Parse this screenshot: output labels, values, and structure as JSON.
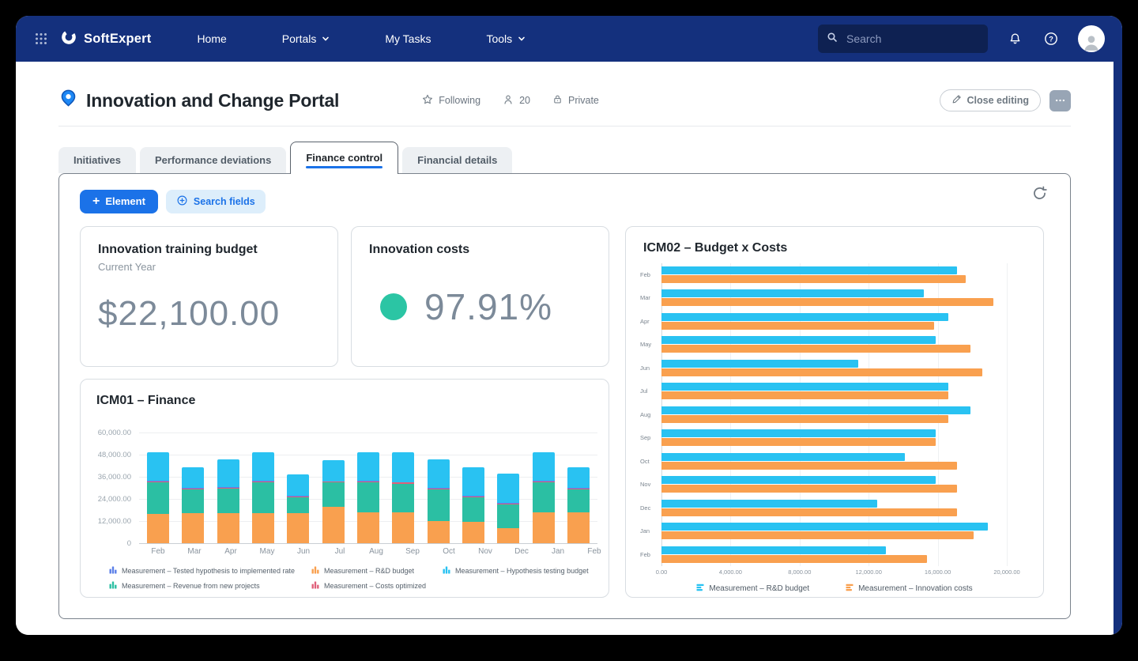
{
  "navbar": {
    "brand": "SoftExpert",
    "items": [
      {
        "label": "Home",
        "has_caret": false
      },
      {
        "label": "Portals",
        "has_caret": true
      },
      {
        "label": "My Tasks",
        "has_caret": false
      },
      {
        "label": "Tools",
        "has_caret": true
      }
    ],
    "search_placeholder": "Search"
  },
  "header": {
    "title": "Innovation and Change Portal",
    "meta": [
      {
        "icon": "star-icon",
        "label": "Following"
      },
      {
        "icon": "person-icon",
        "label": "20"
      },
      {
        "icon": "lock-icon",
        "label": "Private"
      }
    ],
    "close_editing_label": "Close editing"
  },
  "tabs": [
    {
      "label": "Initiatives",
      "active": false
    },
    {
      "label": "Performance deviations",
      "active": false
    },
    {
      "label": "Finance control",
      "active": true
    },
    {
      "label": "Financial details",
      "active": false
    }
  ],
  "toolbar": {
    "element_label": "Element",
    "search_fields_label": "Search fields"
  },
  "cards": {
    "training_budget": {
      "title": "Innovation training budget",
      "subtitle": "Current Year",
      "value": "$22,100.00"
    },
    "innovation_costs": {
      "title": "Innovation costs",
      "value": "97.91%",
      "status_color": "#2BC5A4"
    }
  },
  "colors": {
    "navbar": "#14307D",
    "accent_blue": "#1B72E8",
    "status_green": "#2BC5A4",
    "kpi_text": "#7C8A99"
  },
  "chart_data": [
    {
      "id": "icm01",
      "type": "bar",
      "stacked": true,
      "title": "ICM01 – Finance",
      "categories": [
        "Feb",
        "Mar",
        "Apr",
        "May",
        "Jun",
        "Jul",
        "Aug",
        "Sep",
        "Oct",
        "Nov",
        "Dec",
        "Jan",
        "Feb"
      ],
      "series": [
        {
          "name": "Measurement – R&D budget",
          "color": "#F9A04F",
          "values": [
            15700,
            16000,
            16000,
            16100,
            16100,
            19700,
            16400,
            16400,
            11900,
            11400,
            7900,
            16400,
            16400
          ]
        },
        {
          "name": "Measurement – Revenue from new projects",
          "color": "#2BBFA3",
          "values": [
            17200,
            13000,
            13300,
            16500,
            8600,
            12900,
            16200,
            15700,
            17100,
            13300,
            12800,
            16200,
            12600
          ]
        },
        {
          "name": "Measurement – Costs optimized",
          "color": "#E0607A",
          "values": [
            500,
            500,
            500,
            500,
            500,
            500,
            500,
            500,
            500,
            500,
            500,
            500,
            500
          ]
        },
        {
          "name": "Measurement – Tested hypothesis to implemented rate",
          "color": "#5B7FE8",
          "values": [
            300,
            300,
            300,
            300,
            300,
            300,
            300,
            300,
            300,
            300,
            300,
            300,
            300
          ]
        },
        {
          "name": "Measurement – Hypothesis testing budget",
          "color": "#29C2F2",
          "values": [
            15300,
            11200,
            14900,
            15600,
            11600,
            11300,
            15500,
            16000,
            15200,
            15500,
            15900,
            15600,
            11200
          ]
        }
      ],
      "legend": [
        {
          "label": "Measurement – Tested hypothesis to implemented rate",
          "color": "#5B7FE8"
        },
        {
          "label": "Measurement – R&D budget",
          "color": "#F9A04F"
        },
        {
          "label": "Measurement – Hypothesis testing budget",
          "color": "#29C2F2"
        },
        {
          "label": "Measurement – Revenue from new projects",
          "color": "#2BBFA3"
        },
        {
          "label": "Measurement – Costs optimized",
          "color": "#E0607A"
        }
      ],
      "ylim": [
        0,
        60000
      ],
      "yticks": [
        {
          "value": 60000,
          "label": "60,000.00"
        },
        {
          "value": 48000,
          "label": "48,000.00"
        },
        {
          "value": 36000,
          "label": "36,000.00"
        },
        {
          "value": 24000,
          "label": "24,000.00"
        },
        {
          "value": 12000,
          "label": "12,000.00"
        },
        {
          "value": 0,
          "label": "0"
        }
      ],
      "grid": true,
      "legend_position": "bottom"
    },
    {
      "id": "icm02",
      "type": "bar",
      "orientation": "horizontal",
      "grouped": true,
      "title": "ICM02 – Budget x Costs",
      "categories": [
        "Feb",
        "Mar",
        "Apr",
        "May",
        "Jun",
        "Jul",
        "Aug",
        "Sep",
        "Oct",
        "Nov",
        "Dec",
        "Jan",
        "Feb"
      ],
      "series": [
        {
          "name": "Measurement – R&D budget",
          "color": "#29C2F2",
          "values": [
            17100,
            15200,
            16600,
            15900,
            11400,
            16600,
            17900,
            15900,
            14100,
            15900,
            12500,
            18900,
            13000
          ]
        },
        {
          "name": "Measurement – Innovation costs",
          "color": "#F9A04F",
          "values": [
            17600,
            19200,
            15800,
            17900,
            18600,
            16600,
            16600,
            15900,
            17100,
            17100,
            17100,
            18100,
            15400
          ]
        }
      ],
      "xlim": [
        0,
        20000
      ],
      "xticks": [
        {
          "value": 0,
          "label": "0.00"
        },
        {
          "value": 4000,
          "label": "4,000.00"
        },
        {
          "value": 8000,
          "label": "8,000.00"
        },
        {
          "value": 12000,
          "label": "12,000.00"
        },
        {
          "value": 16000,
          "label": "16,000.00"
        },
        {
          "value": 20000,
          "label": "20,000.00"
        }
      ],
      "grid": true,
      "legend_position": "bottom"
    }
  ]
}
